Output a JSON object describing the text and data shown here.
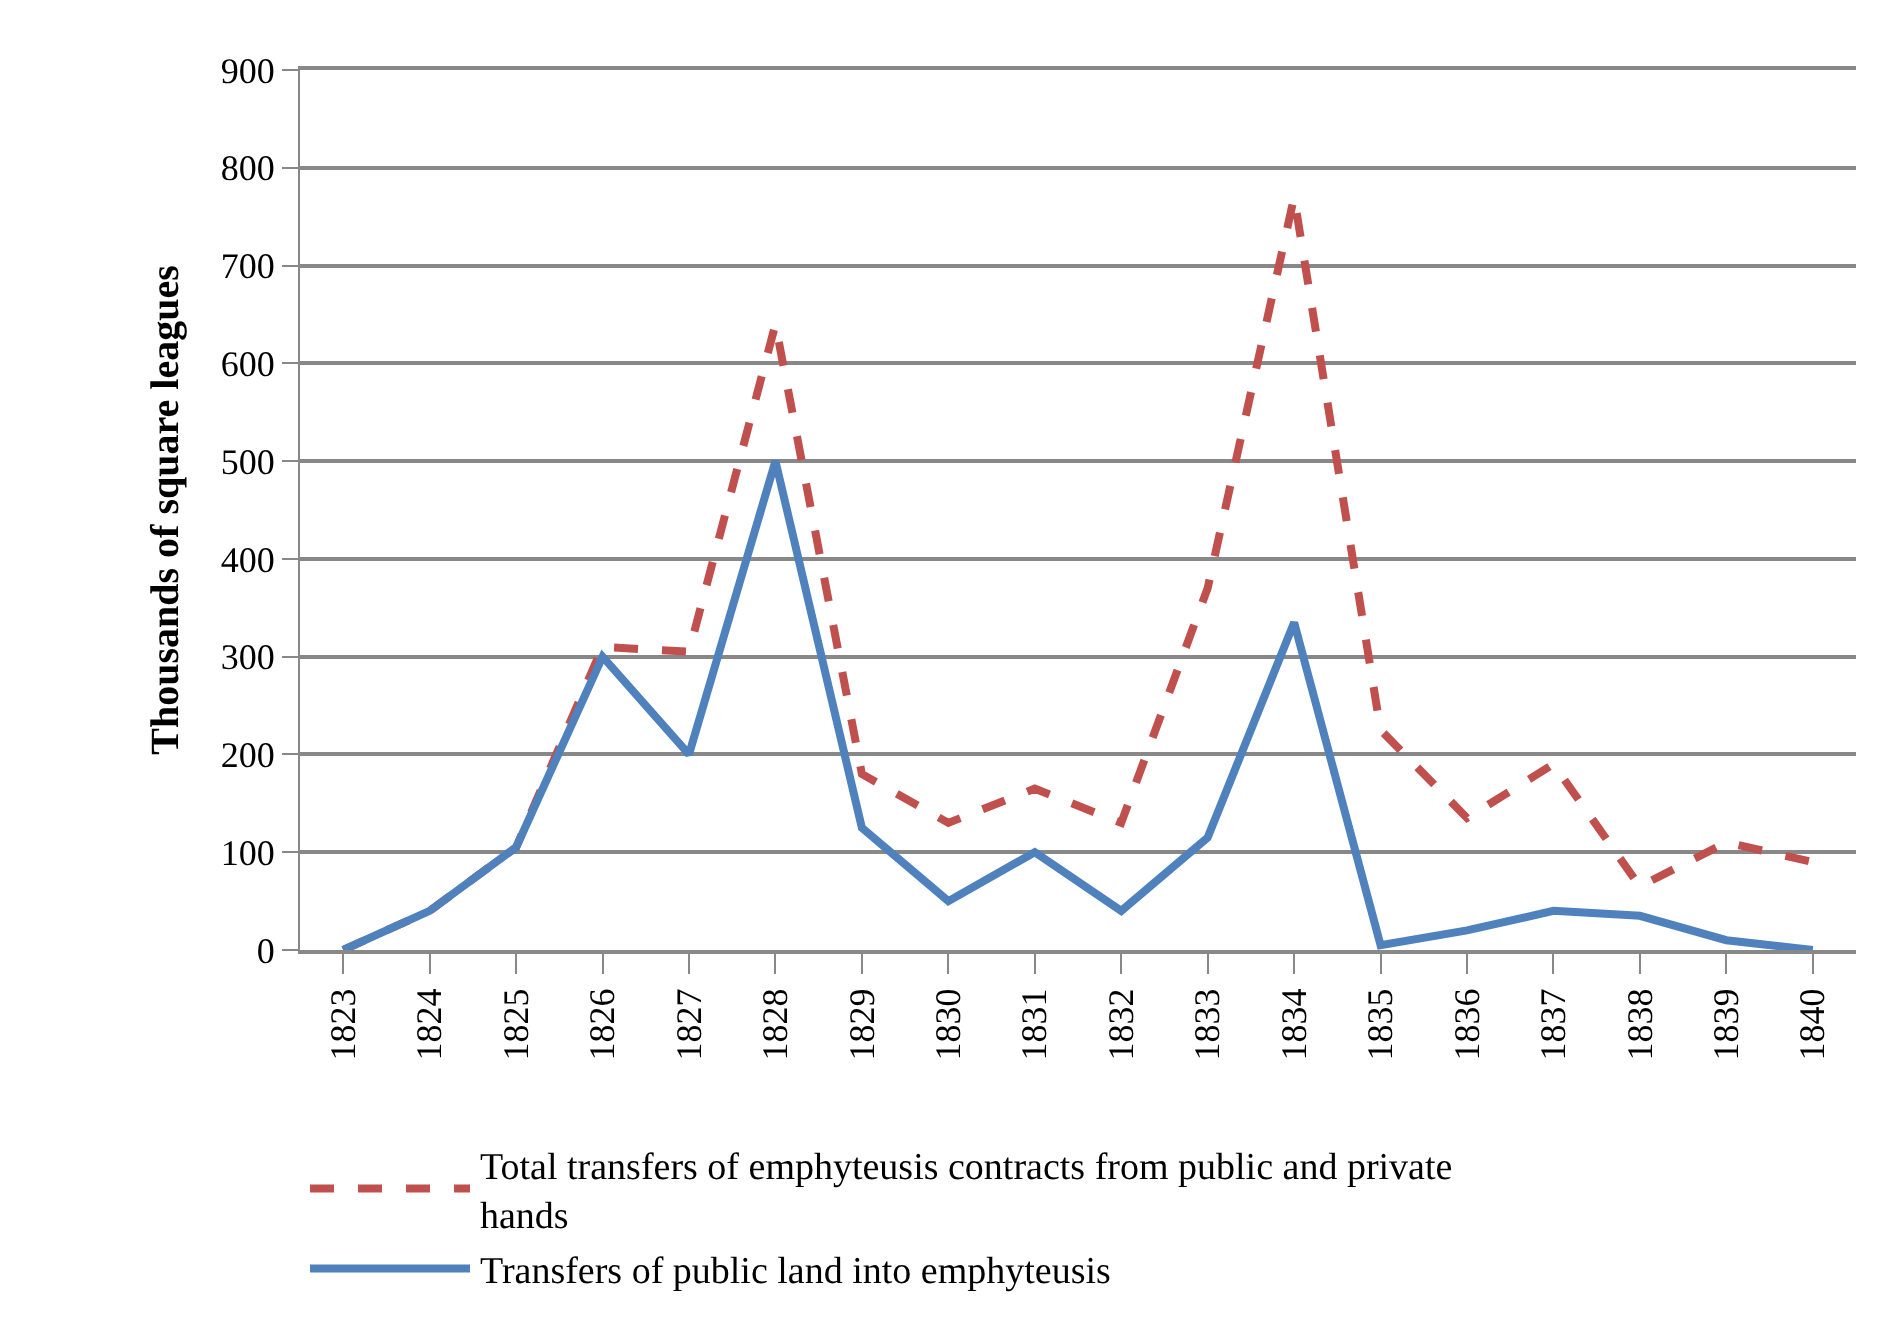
{
  "chart_data": {
    "type": "line",
    "ylabel": "Thousands of square leagues",
    "categories": [
      "1823",
      "1824",
      "1825",
      "1826",
      "1827",
      "1828",
      "1829",
      "1830",
      "1831",
      "1832",
      "1833",
      "1834",
      "1835",
      "1836",
      "1837",
      "1838",
      "1839",
      "1840"
    ],
    "series": [
      {
        "name": "Total transfers of emphyteusis contracts from public and private hands",
        "color": "#c0504d",
        "line_style": "dashed",
        "values": [
          0,
          40,
          105,
          310,
          305,
          640,
          180,
          130,
          165,
          130,
          370,
          770,
          225,
          135,
          190,
          65,
          110,
          90
        ]
      },
      {
        "name": "Transfers of public land into emphyteusis",
        "color": "#4f81bd",
        "line_style": "solid",
        "values": [
          0,
          40,
          105,
          300,
          200,
          500,
          125,
          50,
          100,
          40,
          115,
          335,
          5,
          20,
          40,
          35,
          10,
          0
        ]
      }
    ],
    "ylim": [
      0,
      900
    ],
    "yticks": [
      0,
      100,
      200,
      300,
      400,
      500,
      600,
      700,
      800,
      900
    ],
    "grid": "y",
    "legend": "bottom",
    "marker": "none"
  }
}
